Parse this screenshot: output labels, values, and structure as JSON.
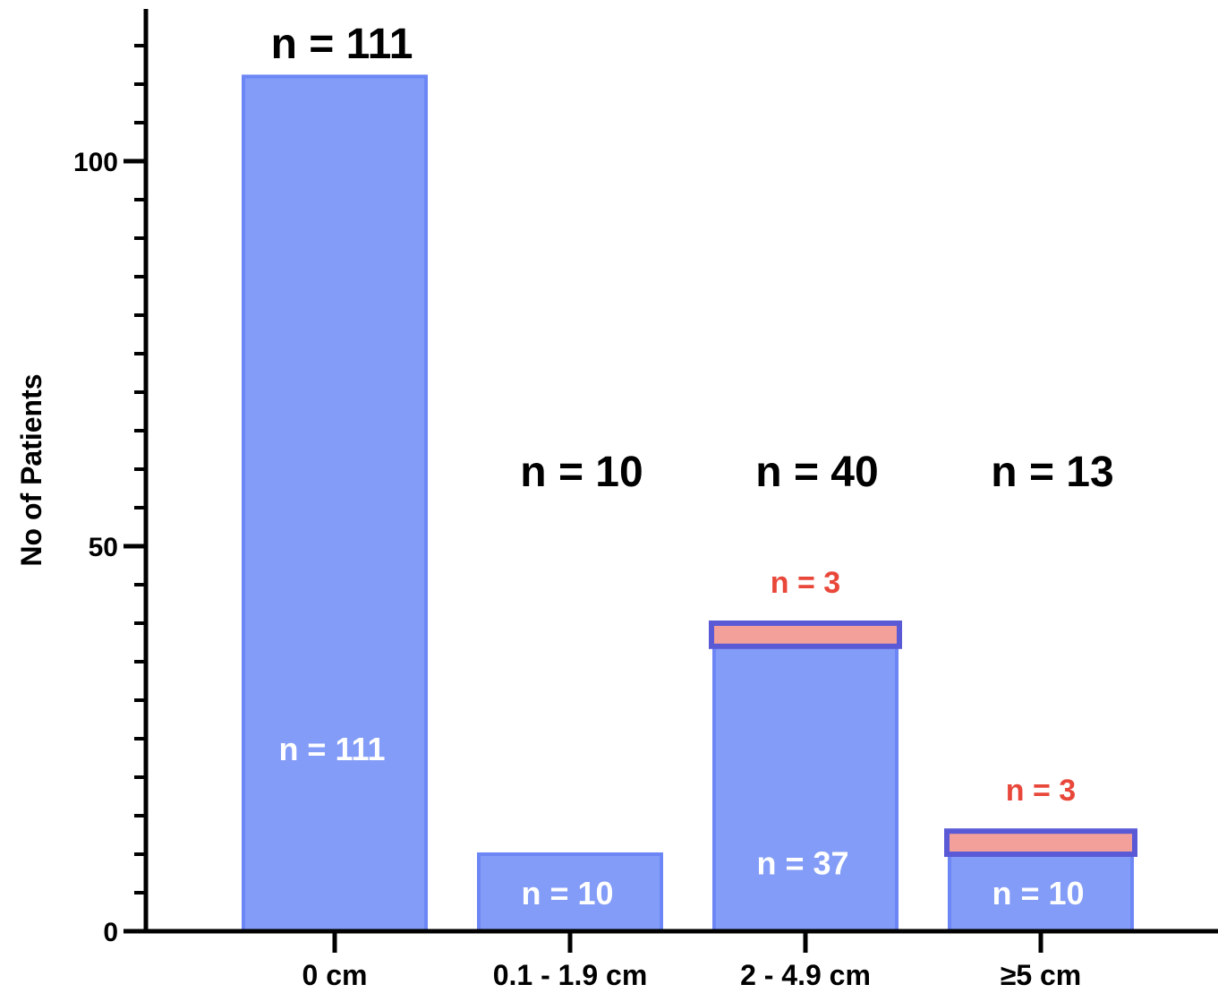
{
  "chart_data": {
    "type": "bar",
    "stacked": true,
    "categories": [
      "0 cm",
      "0.1 - 1.9 cm",
      "2 - 4.9 cm",
      "≥5 cm"
    ],
    "series": [
      {
        "values": [
          111,
          10,
          37,
          10
        ],
        "labels": [
          "n = 111",
          "n = 10",
          "n = 37",
          "n = 10"
        ],
        "color": "#839cf7",
        "stroke": "#6c87f5"
      },
      {
        "values": [
          0,
          0,
          3,
          3
        ],
        "labels": [
          "",
          "",
          "n = 3",
          "n = 3"
        ],
        "color": "#f4a09a",
        "stroke": "#5a5ad6"
      }
    ],
    "totals": [
      "n = 111",
      "n = 10",
      "n = 40",
      "n = 13"
    ],
    "title": "",
    "xlabel": "",
    "ylabel": "No of Patients",
    "ylim": [
      0,
      120
    ],
    "major_ticks": [
      0,
      50,
      100
    ],
    "minor_tick_step": 5,
    "grid": false,
    "colors": {
      "label_red": "#e8473a",
      "inner_text": "#ffffff",
      "axis": "#000000"
    }
  }
}
